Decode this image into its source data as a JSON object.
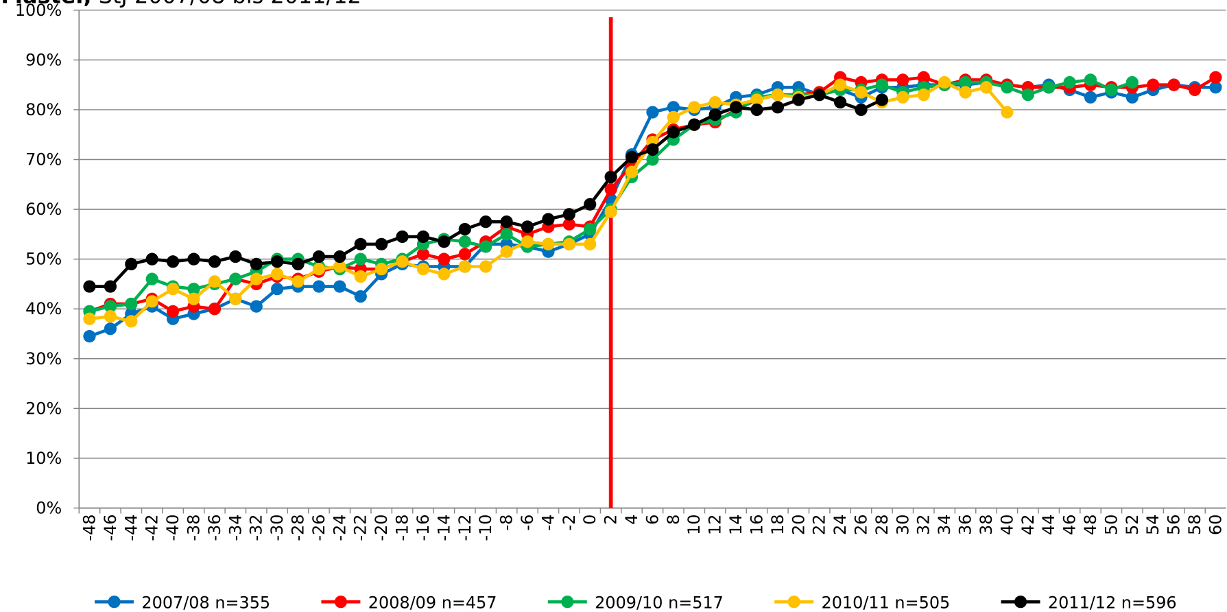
{
  "chart_data": {
    "type": "line",
    "title": {
      "bold": "Master,",
      "text": "StJ 2007/08 bis 2011/12"
    },
    "categories": [
      "-48",
      "-46",
      "-44",
      "-42",
      "-40",
      "-38",
      "-36",
      "-34",
      "-32",
      "-30",
      "-28",
      "-26",
      "-24",
      "-22",
      "-20",
      "-18",
      "-16",
      "-14",
      "-12",
      "-10",
      "-8",
      "-6",
      "-4",
      "-2",
      "0",
      "2",
      "4",
      "6",
      "8",
      "10",
      "12",
      "14",
      "16",
      "18",
      "20",
      "22",
      "24",
      "26",
      "28",
      "30",
      "32",
      "34",
      "36",
      "38",
      "40",
      "42",
      "44",
      "46",
      "48",
      "50",
      "52",
      "54",
      "56",
      "58",
      "60"
    ],
    "series": [
      {
        "name": "2007/08 n=355",
        "color": "#0070c0",
        "values": [
          34.5,
          36,
          39,
          40.5,
          38,
          39,
          40,
          42,
          40.5,
          44,
          44.5,
          44.5,
          44.5,
          42.5,
          47,
          49,
          48.5,
          48.5,
          48.5,
          53,
          53,
          52.5,
          51.5,
          53,
          55,
          62,
          71,
          79.5,
          80.5,
          80,
          80.5,
          82.5,
          83,
          84.5,
          84.5,
          83,
          84,
          82.5,
          84.5,
          84.5,
          85,
          85,
          85,
          85.5,
          85,
          84.5,
          85,
          84,
          82.5,
          83.5,
          82.5,
          84,
          85,
          84.5,
          84.5
        ]
      },
      {
        "name": "2008/09 n=457",
        "color": "#ff0000",
        "values": [
          39.5,
          41,
          41,
          42,
          39.5,
          40.5,
          40,
          46,
          45,
          46.5,
          46,
          47.5,
          48.5,
          48,
          48,
          49.5,
          51,
          50,
          51,
          53.5,
          56.5,
          55,
          56.5,
          57,
          56.5,
          64,
          69,
          74,
          76,
          77,
          77.5,
          80,
          82,
          83,
          83,
          83.5,
          86.5,
          85.5,
          86,
          86,
          86.5,
          85,
          86,
          86,
          85,
          84.5,
          84.5,
          84.5,
          85,
          84.5,
          84.5,
          85,
          85,
          84,
          86.5
        ]
      },
      {
        "name": "2009/10 n=517",
        "color": "#00b050",
        "values": [
          39.5,
          40.5,
          41,
          46,
          44.5,
          44,
          45,
          46,
          47.5,
          50,
          50,
          48.5,
          48,
          50,
          49,
          50,
          53,
          54,
          53.5,
          52.5,
          55,
          52.5,
          53,
          53.5,
          56,
          60,
          66.5,
          70,
          74,
          77,
          78,
          79.5,
          82.5,
          83,
          83,
          83,
          84,
          84,
          85,
          83.5,
          84.5,
          85,
          85.5,
          85.5,
          84.5,
          83,
          84.5,
          85.5,
          86,
          84,
          85.5,
          null,
          null,
          null,
          null
        ]
      },
      {
        "name": "2010/11 n=505",
        "color": "#ffc000",
        "values": [
          38,
          38.5,
          37.5,
          41.5,
          44,
          42,
          45.5,
          42,
          46,
          47,
          45.5,
          48,
          48.5,
          46.5,
          48,
          49.5,
          48,
          47,
          48.5,
          48.5,
          51.5,
          53.5,
          53,
          53,
          53,
          59.5,
          67.5,
          73.5,
          78.5,
          80.5,
          81.5,
          81,
          82,
          83,
          82.5,
          83,
          85,
          83.5,
          81.5,
          82.5,
          83,
          85.5,
          83.5,
          84.5,
          79.5,
          null,
          null,
          null,
          null,
          null,
          null,
          null,
          null,
          null,
          null
        ]
      },
      {
        "name": "2011/12 n=596",
        "color": "#000000",
        "values": [
          44.5,
          44.5,
          49,
          50,
          49.5,
          50,
          49.5,
          50.5,
          49,
          49.5,
          49,
          50.5,
          50.5,
          53,
          53,
          54.5,
          54.5,
          53.5,
          56,
          57.5,
          57.5,
          56.5,
          58,
          59,
          61,
          66.5,
          70.5,
          72,
          75.5,
          77,
          79,
          80.5,
          80,
          80.5,
          82,
          83,
          81.5,
          80,
          82,
          null,
          null,
          null,
          null,
          null,
          null,
          null,
          null,
          null,
          null,
          null,
          null,
          null,
          null,
          null,
          null
        ]
      }
    ],
    "ylim": [
      0,
      100
    ],
    "yticks": [
      {
        "value": 0,
        "label": "0%"
      },
      {
        "value": 10,
        "label": "10%"
      },
      {
        "value": 20,
        "label": "20%"
      },
      {
        "value": 30,
        "label": "30%"
      },
      {
        "value": 40,
        "label": "40%"
      },
      {
        "value": 50,
        "label": "50%"
      },
      {
        "value": 60,
        "label": "60%"
      },
      {
        "value": 70,
        "label": "70%"
      },
      {
        "value": 80,
        "label": "80%"
      },
      {
        "value": 90,
        "label": "90%"
      },
      {
        "value": 100,
        "label": "100%"
      }
    ],
    "grid": true,
    "legend": "bottom",
    "vline": {
      "category": "2",
      "color": "#ff0000"
    }
  }
}
